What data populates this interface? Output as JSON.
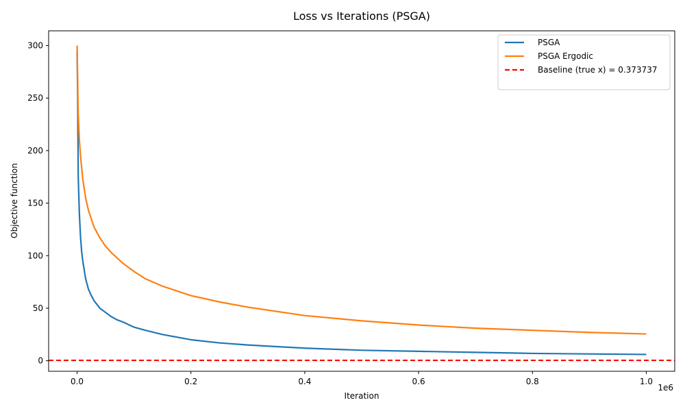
{
  "chart_data": {
    "type": "line",
    "title": "Loss vs Iterations (PSGA)",
    "xlabel": "Iteration",
    "ylabel": "Objective function",
    "x_offset_text": "1e6",
    "xlim": [
      -0.05,
      1.05
    ],
    "ylim": [
      -10,
      314
    ],
    "xticks": [
      0.0,
      0.2,
      0.4,
      0.6,
      0.8,
      1.0
    ],
    "xtick_labels": [
      "0.0",
      "0.2",
      "0.4",
      "0.6",
      "0.8",
      "1.0"
    ],
    "yticks": [
      0,
      50,
      100,
      150,
      200,
      250,
      300
    ],
    "ytick_labels": [
      "0",
      "50",
      "100",
      "150",
      "200",
      "250",
      "300"
    ],
    "grid": false,
    "legend_position": "top-right",
    "series": [
      {
        "name": "PSGA",
        "color": "#1f77b4",
        "x": [
          0.0,
          0.001,
          0.002,
          0.004,
          0.006,
          0.008,
          0.01,
          0.015,
          0.02,
          0.025,
          0.03,
          0.04,
          0.05,
          0.06,
          0.07,
          0.08,
          0.1,
          0.12,
          0.15,
          0.2,
          0.25,
          0.3,
          0.4,
          0.5,
          0.6,
          0.7,
          0.8,
          0.9,
          1.0
        ],
        "y": [
          295,
          250,
          175,
          140,
          118,
          104,
          95,
          78,
          68,
          62,
          57,
          50,
          46,
          42,
          39,
          37,
          32,
          29,
          25,
          20,
          17,
          15,
          12,
          10,
          9,
          8,
          7,
          6.5,
          6
        ]
      },
      {
        "name": "PSGA Ergodic",
        "color": "#ff7f0e",
        "x": [
          0.0,
          0.0005,
          0.001,
          0.002,
          0.004,
          0.006,
          0.01,
          0.015,
          0.02,
          0.03,
          0.04,
          0.05,
          0.06,
          0.08,
          0.1,
          0.12,
          0.15,
          0.2,
          0.25,
          0.3,
          0.4,
          0.5,
          0.6,
          0.7,
          0.8,
          0.9,
          1.0
        ],
        "y": [
          300,
          285,
          265,
          235,
          210,
          195,
          173,
          155,
          143,
          127,
          117,
          109,
          103,
          93,
          85,
          78,
          71,
          62,
          56,
          51,
          43,
          38,
          34,
          31,
          29,
          27,
          25.5
        ]
      },
      {
        "name": "Baseline (true x) = 0.373737",
        "color": "#ff0000",
        "dashed": true,
        "constant": 0.373737
      }
    ]
  }
}
